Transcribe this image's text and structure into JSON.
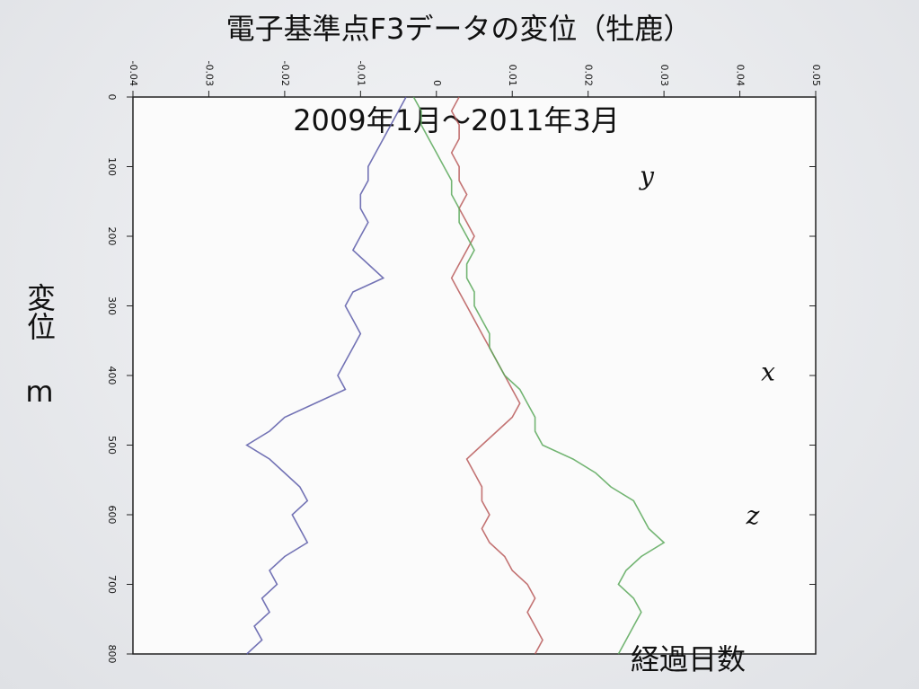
{
  "chart_data": {
    "type": "line",
    "orientation": "vertical-time",
    "title": "電子基準点F3データの変位（牡鹿）",
    "subtitle": "2009年1月～2011年3月",
    "ylabel": "変位 m",
    "xlabel": "経過日数",
    "x": [
      0,
      20,
      40,
      60,
      80,
      100,
      120,
      140,
      160,
      180,
      200,
      220,
      240,
      260,
      280,
      300,
      320,
      340,
      360,
      380,
      400,
      420,
      440,
      460,
      480,
      500,
      520,
      540,
      560,
      580,
      600,
      620,
      640,
      660,
      680,
      700,
      720,
      740,
      760,
      780,
      800
    ],
    "series": [
      {
        "name": "y",
        "color": "#5a5aa8",
        "values": [
          -0.004,
          -0.005,
          -0.006,
          -0.007,
          -0.008,
          -0.009,
          -0.009,
          -0.01,
          -0.01,
          -0.009,
          -0.01,
          -0.011,
          -0.009,
          -0.007,
          -0.011,
          -0.012,
          -0.011,
          -0.01,
          -0.011,
          -0.012,
          -0.013,
          -0.012,
          -0.016,
          -0.02,
          -0.022,
          -0.025,
          -0.022,
          -0.02,
          -0.018,
          -0.017,
          -0.019,
          -0.018,
          -0.017,
          -0.02,
          -0.022,
          -0.021,
          -0.023,
          -0.022,
          -0.024,
          -0.023,
          -0.025
        ]
      },
      {
        "name": "x",
        "color": "#b85a5a",
        "values": [
          0.003,
          0.002,
          0.003,
          0.003,
          0.002,
          0.003,
          0.003,
          0.004,
          0.003,
          0.004,
          0.005,
          0.004,
          0.003,
          0.002,
          0.003,
          0.004,
          0.005,
          0.006,
          0.007,
          0.008,
          0.009,
          0.01,
          0.011,
          0.01,
          0.008,
          0.006,
          0.004,
          0.005,
          0.006,
          0.006,
          0.007,
          0.006,
          0.007,
          0.009,
          0.01,
          0.012,
          0.013,
          0.012,
          0.013,
          0.014,
          0.013
        ]
      },
      {
        "name": "z",
        "color": "#5aa85a",
        "values": [
          -0.003,
          -0.002,
          -0.002,
          -0.001,
          0.0,
          0.001,
          0.002,
          0.002,
          0.003,
          0.003,
          0.004,
          0.005,
          0.004,
          0.004,
          0.005,
          0.005,
          0.006,
          0.007,
          0.007,
          0.008,
          0.009,
          0.011,
          0.012,
          0.013,
          0.013,
          0.014,
          0.018,
          0.021,
          0.023,
          0.026,
          0.027,
          0.028,
          0.03,
          0.027,
          0.025,
          0.024,
          0.026,
          0.027,
          0.026,
          0.025,
          0.024
        ]
      }
    ],
    "xlim": [
      0,
      800
    ],
    "xticks": [
      0,
      100,
      200,
      300,
      400,
      500,
      600,
      700,
      800
    ],
    "ylim": [
      -0.04,
      0.05
    ],
    "yticks": [
      -0.04,
      -0.03,
      -0.02,
      -0.01,
      0,
      0.01,
      0.02,
      0.03,
      0.04,
      0.05
    ],
    "grid": false
  }
}
